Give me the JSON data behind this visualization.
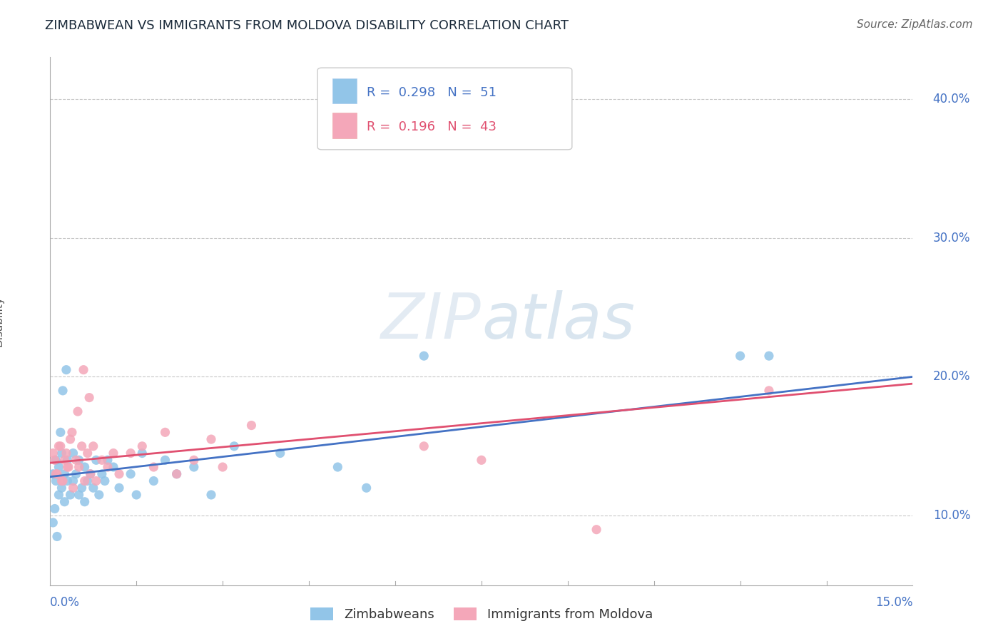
{
  "title": "ZIMBABWEAN VS IMMIGRANTS FROM MOLDOVA DISABILITY CORRELATION CHART",
  "source": "Source: ZipAtlas.com",
  "series1_label": "Zimbabweans",
  "series1_color": "#92C5E8",
  "series1_line_color": "#4472c4",
  "series1_R": 0.298,
  "series1_N": 51,
  "series2_label": "Immigrants from Moldova",
  "series2_color": "#F4A7B9",
  "series2_line_color": "#e05070",
  "series2_R": 0.196,
  "series2_N": 43,
  "watermark_zip": "ZIP",
  "watermark_atlas": "atlas",
  "background_color": "#ffffff",
  "grid_color": "#c8c8c8",
  "title_color": "#1a2a3a",
  "ylabel_ticks": [
    10.0,
    20.0,
    30.0,
    40.0
  ],
  "xlim": [
    0.0,
    15.0
  ],
  "ylim": [
    5.0,
    43.0
  ],
  "trend1_x0": 0.0,
  "trend1_y0": 12.8,
  "trend1_x1": 15.0,
  "trend1_y1": 20.0,
  "trend2_x0": 0.0,
  "trend2_y0": 13.8,
  "trend2_x1": 15.0,
  "trend2_y1": 19.5,
  "scatter1_x": [
    0.05,
    0.1,
    0.1,
    0.15,
    0.15,
    0.2,
    0.2,
    0.25,
    0.25,
    0.3,
    0.3,
    0.35,
    0.4,
    0.4,
    0.45,
    0.5,
    0.5,
    0.55,
    0.6,
    0.6,
    0.65,
    0.7,
    0.75,
    0.8,
    0.85,
    0.9,
    0.95,
    1.0,
    1.1,
    1.2,
    1.4,
    1.5,
    1.6,
    1.8,
    2.0,
    2.2,
    2.5,
    2.8,
    3.2,
    4.0,
    5.0,
    5.5,
    6.5,
    0.05,
    0.08,
    0.12,
    0.18,
    0.22,
    0.28,
    12.0,
    12.5
  ],
  "scatter1_y": [
    13.0,
    12.5,
    14.0,
    11.5,
    13.5,
    12.0,
    14.5,
    11.0,
    13.0,
    12.5,
    14.0,
    11.5,
    12.5,
    14.5,
    13.0,
    11.5,
    14.0,
    12.0,
    13.5,
    11.0,
    12.5,
    13.0,
    12.0,
    14.0,
    11.5,
    13.0,
    12.5,
    14.0,
    13.5,
    12.0,
    13.0,
    11.5,
    14.5,
    12.5,
    14.0,
    13.0,
    13.5,
    11.5,
    15.0,
    14.5,
    13.5,
    12.0,
    21.5,
    9.5,
    10.5,
    8.5,
    16.0,
    19.0,
    20.5,
    21.5,
    21.5
  ],
  "scatter2_x": [
    0.05,
    0.1,
    0.15,
    0.2,
    0.25,
    0.3,
    0.35,
    0.4,
    0.45,
    0.5,
    0.55,
    0.6,
    0.65,
    0.7,
    0.75,
    0.8,
    0.9,
    1.0,
    1.1,
    1.2,
    1.4,
    1.6,
    1.8,
    2.0,
    2.2,
    2.5,
    2.8,
    3.0,
    3.5,
    0.08,
    0.12,
    0.18,
    0.22,
    0.28,
    0.32,
    0.38,
    0.48,
    0.58,
    0.68,
    6.5,
    7.5,
    9.5,
    12.5
  ],
  "scatter2_y": [
    14.5,
    13.0,
    15.0,
    12.5,
    14.0,
    13.5,
    15.5,
    12.0,
    14.0,
    13.5,
    15.0,
    12.5,
    14.5,
    13.0,
    15.0,
    12.5,
    14.0,
    13.5,
    14.5,
    13.0,
    14.5,
    15.0,
    13.5,
    16.0,
    13.0,
    14.0,
    15.5,
    13.5,
    16.5,
    14.0,
    13.0,
    15.0,
    12.5,
    14.5,
    13.5,
    16.0,
    17.5,
    20.5,
    18.5,
    15.0,
    14.0,
    9.0,
    19.0
  ]
}
